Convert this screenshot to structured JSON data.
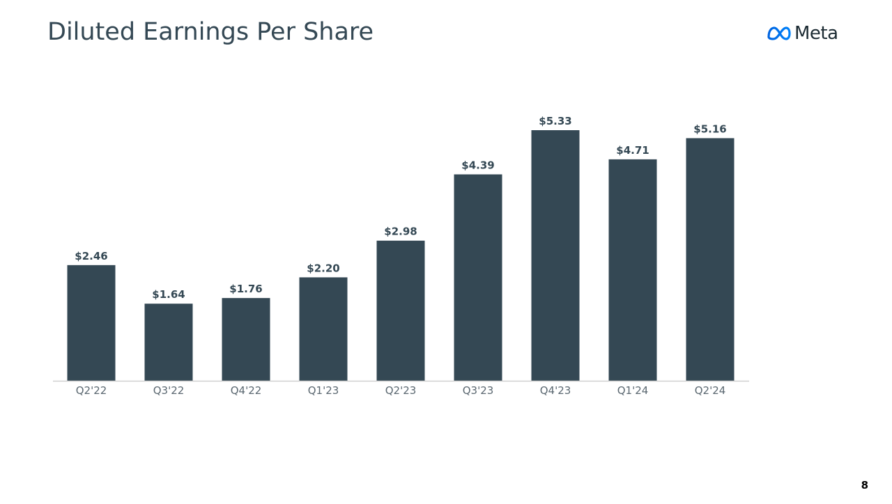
{
  "slide": {
    "title": "Diluted Earnings Per Share",
    "logo_text": "Meta",
    "page_number": "8"
  },
  "colors": {
    "bar": "#344854",
    "title": "#344854",
    "tick_text": "#5a6770",
    "axis": "#d0d0d0",
    "logo_gradient_start": "#0064e0",
    "logo_gradient_end": "#0082fb"
  },
  "icons": {
    "logo": "meta-infinity-logo-icon"
  },
  "chart_data": {
    "type": "bar",
    "title": "Diluted Earnings Per Share",
    "xlabel": "",
    "ylabel": "",
    "categories": [
      "Q2'22",
      "Q3'22",
      "Q4'22",
      "Q1'23",
      "Q2'23",
      "Q3'23",
      "Q4'23",
      "Q1'24",
      "Q2'24"
    ],
    "values": [
      2.46,
      1.64,
      1.76,
      2.2,
      2.98,
      4.39,
      5.33,
      4.71,
      5.16
    ],
    "value_labels": [
      "$2.46",
      "$1.64",
      "$1.76",
      "$2.20",
      "$2.98",
      "$4.39",
      "$5.33",
      "$4.71",
      "$5.16"
    ],
    "ylim": [
      0,
      5.33
    ],
    "grid": false,
    "legend": "none",
    "y_axis_visible": false
  }
}
